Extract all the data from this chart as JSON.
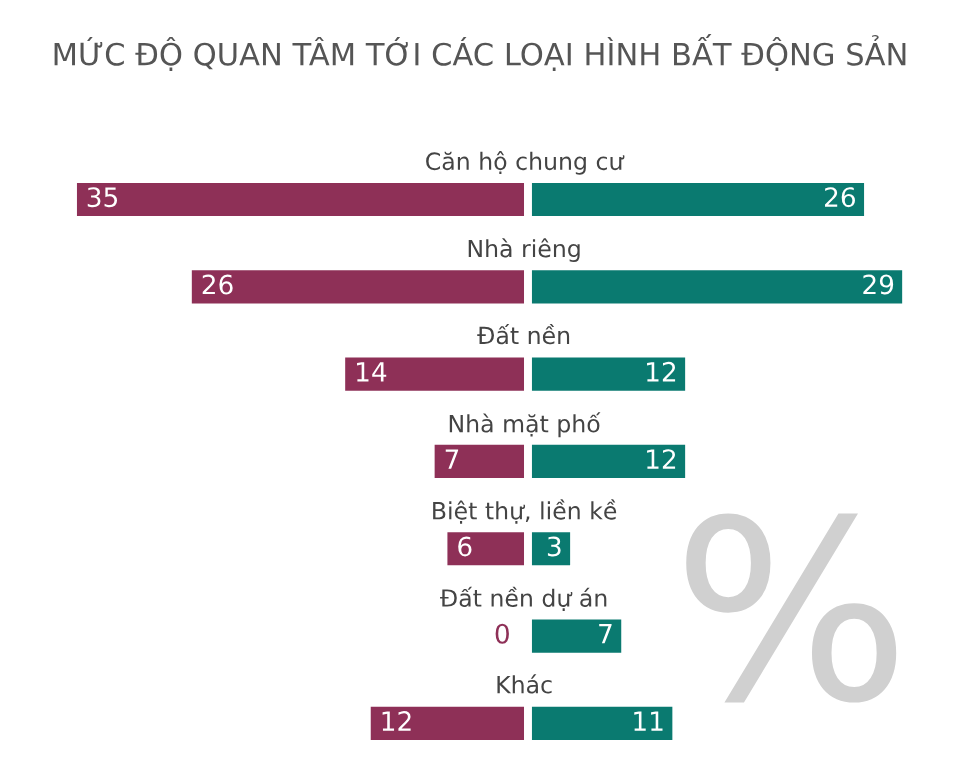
{
  "chart_data": [
    {
      "type": "bar",
      "orientation": "horizontal",
      "title": "MỨC ĐỘ QUAN TÂM TỚI CÁC LOẠI HÌNH BẤT ĐỘNG SẢN",
      "categories": [
        "Căn hộ chung cư",
        "Nhà riêng",
        "Đất nền",
        "Nhà mặt phố",
        "Biệt thự, liền kề",
        "Đất nền dự án",
        "Khác"
      ],
      "series": [
        {
          "color": "#8e3057",
          "values": [
            35,
            26,
            14,
            7,
            6,
            0,
            12
          ]
        }
      ],
      "xlim": [
        35,
        0
      ],
      "data_labels": true
    },
    {
      "type": "bar",
      "orientation": "horizontal",
      "categories": [
        null,
        null,
        null,
        null,
        null,
        null,
        null
      ],
      "series": [
        {
          "color": "#0a7a70",
          "values": [
            26,
            29,
            12,
            12,
            3,
            7,
            11
          ]
        }
      ],
      "xlim": [
        0,
        29
      ],
      "data_labels": true,
      "annotations": [
        "%"
      ]
    }
  ]
}
